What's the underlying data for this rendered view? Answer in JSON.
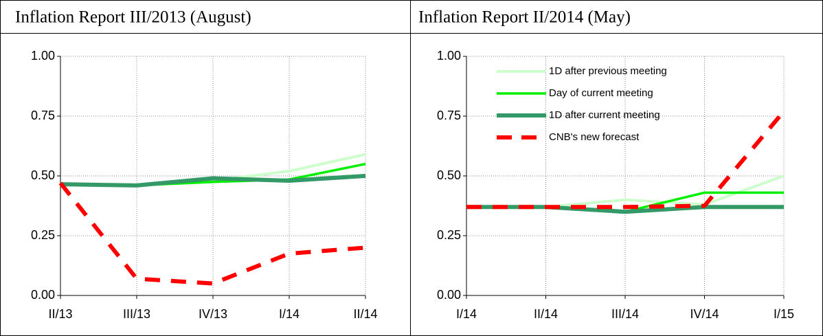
{
  "chart_data": [
    {
      "type": "line",
      "title": "Inflation Report III/2013 (August)",
      "categories": [
        "II/13",
        "III/13",
        "IV/13",
        "I/14",
        "II/14"
      ],
      "series": [
        {
          "color": "#ccffcc",
          "values": [
            0.465,
            0.46,
            0.48,
            0.52,
            0.59
          ]
        },
        {
          "color": "#00ee00",
          "values": [
            0.465,
            0.46,
            0.475,
            0.485,
            0.55
          ]
        },
        {
          "color": "#339966",
          "values": [
            0.465,
            0.46,
            0.49,
            0.48,
            0.5
          ]
        },
        {
          "color": "#ff0000",
          "values": [
            0.47,
            0.07,
            0.05,
            0.175,
            0.2
          ]
        }
      ],
      "ylim": [
        0,
        1
      ],
      "yticks": [
        {
          "value": 0,
          "label": "0.00"
        },
        0.25,
        {
          "value": 0.5,
          "label": "0.50"
        },
        0.75,
        {
          "value": 1,
          "label": "1.00"
        }
      ],
      "grid": true
    },
    {
      "type": "line",
      "title": "Inflation Report II/2014 (May)",
      "categories": [
        "I/14",
        "II/14",
        "III/14",
        "IV/14",
        "I/15"
      ],
      "series": [
        {
          "name": "1D after previous meeting",
          "color": "#ccffcc",
          "values": [
            0.37,
            0.37,
            0.4,
            0.38,
            0.5
          ]
        },
        {
          "name": "Day of current meeting",
          "color": "#00ee00",
          "values": [
            0.37,
            0.37,
            0.35,
            0.43,
            0.43
          ]
        },
        {
          "name": "1D after current meeting",
          "color": "#339966",
          "values": [
            0.37,
            0.37,
            0.35,
            0.37,
            0.37
          ]
        },
        {
          "name": "CNB's new forecast",
          "color": "#ff0000",
          "values": [
            0.37,
            0.37,
            0.37,
            0.375,
            0.77
          ]
        }
      ],
      "ylim": [
        0,
        1
      ],
      "yticks": [
        {
          "value": 0,
          "label": "0.00"
        },
        0.25,
        {
          "value": 0.5,
          "label": "0.50"
        },
        0.75,
        {
          "value": 1,
          "label": "1.00"
        }
      ],
      "grid": true,
      "legend": "upper left"
    }
  ]
}
